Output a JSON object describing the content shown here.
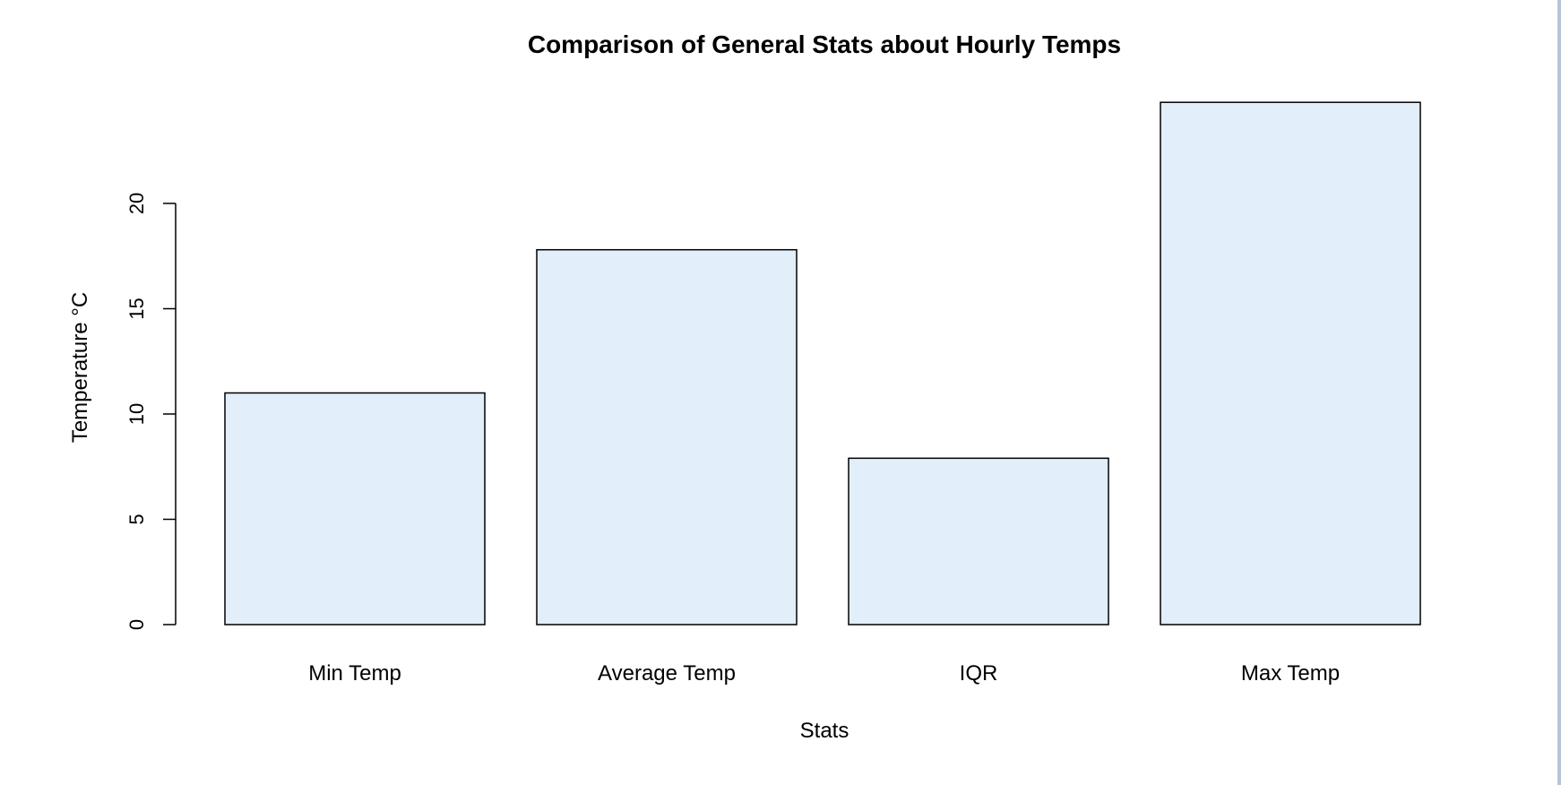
{
  "chart_data": {
    "type": "bar",
    "title": "Comparison of General Stats about Hourly Temps",
    "xlabel": "Stats",
    "ylabel": "Temperature °C",
    "categories": [
      "Min Temp",
      "Average Temp",
      "IQR",
      "Max Temp"
    ],
    "values": [
      11.0,
      17.8,
      7.9,
      24.8
    ],
    "yticks": [
      0,
      5,
      10,
      15,
      20
    ],
    "ylim": [
      0,
      24.8
    ],
    "grid": false,
    "legend": "none",
    "bar_fill": "#e2eef9",
    "bar_stroke": "#000000"
  }
}
